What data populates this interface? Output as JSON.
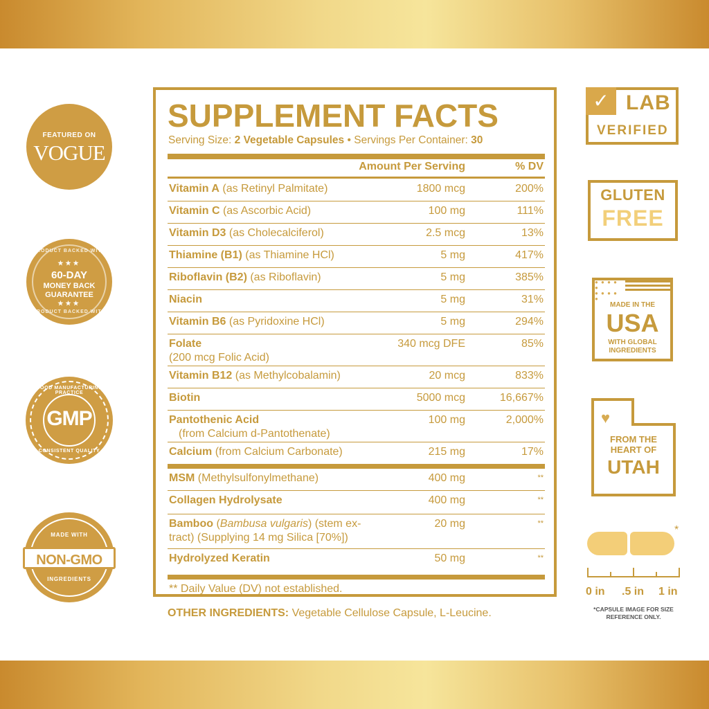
{
  "left_badges": {
    "vogue": {
      "small": "FEATURED ON",
      "big": "VOGUE"
    },
    "money_back": {
      "rim_top": "PRODUCT BACKED WITH",
      "stars": "★★★",
      "line1": "60-DAY",
      "line2": "MONEY BACK",
      "line3": "GUARANTEE",
      "rim_bottom": "PRODUCT BACKED WITH"
    },
    "gmp": {
      "label": "GMP",
      "rim_top": "GOOD MANUFACTURING PRACTICE",
      "rim_bottom": "CONSISTENT QUALITY"
    },
    "non_gmo": {
      "rim_top": "MADE WITH",
      "label": "NON-GMO",
      "rim_bottom": "INGREDIENTS"
    }
  },
  "facts": {
    "title": "SUPPLEMENT FACTS",
    "serving_size_label": "Serving Size:",
    "serving_size_value": "2 Vegetable Capsules",
    "bullet": "•",
    "servings_label": "Servings Per Container:",
    "servings_value": "30",
    "col_amount": "Amount Per Serving",
    "col_dv": "% DV",
    "rows": [
      {
        "name": "Vitamin A",
        "detail": "(as Retinyl Palmitate)",
        "amount": "1800 mcg",
        "dv": "200%"
      },
      {
        "name": "Vitamin C",
        "detail": "(as Ascorbic Acid)",
        "amount": "100 mg",
        "dv": "111%"
      },
      {
        "name": "Vitamin D3",
        "detail": "(as Cholecalciferol)",
        "amount": "2.5 mcg",
        "dv": "13%"
      },
      {
        "name": "Thiamine (B1)",
        "detail": "(as Thiamine HCl)",
        "amount": "5 mg",
        "dv": "417%"
      },
      {
        "name": "Riboflavin (B2)",
        "detail": "(as Riboflavin)",
        "amount": "5 mg",
        "dv": "385%"
      },
      {
        "name": "Niacin",
        "detail": "",
        "amount": "5 mg",
        "dv": "31%"
      },
      {
        "name": "Vitamin B6",
        "detail": "(as Pyridoxine HCl)",
        "amount": "5 mg",
        "dv": "294%"
      },
      {
        "name": "Folate",
        "detail": "(200 mcg Folic Acid)",
        "amount": "340 mcg DFE",
        "dv": "85%"
      },
      {
        "name": "Vitamin B12",
        "detail": "(as Methylcobalamin)",
        "amount": "20 mcg",
        "dv": "833%"
      },
      {
        "name": "Biotin",
        "detail": "",
        "amount": "5000 mcg",
        "dv": "16,667%"
      },
      {
        "name": "Pantothenic Acid",
        "detail": "(from Calcium d-Pantothenate)",
        "amount": "100 mg",
        "dv": "2,000%"
      },
      {
        "name": "Calcium",
        "detail": "(from Calcium Carbonate)",
        "amount": "215 mg",
        "dv": "17%"
      }
    ],
    "rows2": [
      {
        "name": "MSM",
        "detail": "(Methylsulfonylmethane)",
        "amount": "400 mg",
        "dv": "**"
      },
      {
        "name": "Collagen Hydrolysate",
        "detail": "",
        "amount": "400 mg",
        "dv": "**"
      },
      {
        "name": "Bamboo",
        "detail_pre": "(",
        "detail_italic": "Bambusa vulgaris",
        "detail_post": ") (stem ex-",
        "detail2": "tract) (Supplying 14 mg Silica [70%])",
        "amount": "20 mg",
        "dv": "**"
      },
      {
        "name": "Hydrolyzed Keratin",
        "detail": "",
        "amount": "50 mg",
        "dv": "**"
      }
    ],
    "note": "** Daily Value (DV) not established."
  },
  "other_ingredients": {
    "label": "OTHER INGREDIENTS:",
    "value": "Vegetable Cellulose Capsule, L-Leucine."
  },
  "right_badges": {
    "lab": {
      "check": "✓",
      "line1": "LAB",
      "line2": "VERIFIED"
    },
    "gluten": {
      "line1": "GLUTEN",
      "line2": "FREE"
    },
    "usa": {
      "line1": "MADE IN THE",
      "line2": "USA",
      "line3": "WITH GLOBAL",
      "line4": "INGREDIENTS"
    },
    "utah": {
      "heart": "♥",
      "line1": "FROM THE",
      "line2": "HEART OF",
      "line3": "UTAH"
    },
    "capsule": {
      "star": "*",
      "scale0": "0 in",
      "scale1": ".5 in",
      "scale2": "1 in",
      "disclaimer1": "*CAPSULE IMAGE FOR SIZE",
      "disclaimer2": "REFERENCE ONLY."
    }
  },
  "colors": {
    "gold": "#c69a3c",
    "badge_gold": "#cf9d44",
    "light_gold": "#f3ce78"
  }
}
